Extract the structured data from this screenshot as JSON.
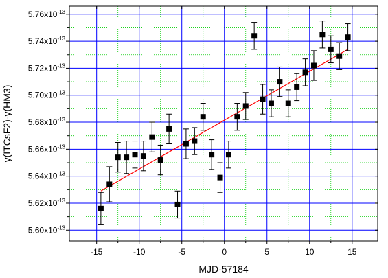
{
  "chart_data": {
    "type": "scatter",
    "title": "",
    "xlabel": "MJD-57184",
    "ylabel": "y(ITCsF2)-y(HM3)",
    "xlim": [
      -18.2,
      18.0
    ],
    "ylim": [
      5.592,
      5.766
    ],
    "x_ticks": [
      -15,
      -10,
      -5,
      0,
      5,
      10,
      15
    ],
    "x_tick_labels": [
      "-15",
      "-10",
      "-5",
      "0",
      "5",
      "10",
      "15"
    ],
    "y_ticks": [
      5.6,
      5.62,
      5.64,
      5.66,
      5.68,
      5.7,
      5.72,
      5.74,
      5.76
    ],
    "y_tick_labels": [
      {
        "mantissa": "5.60x10",
        "exponent": "-13"
      },
      {
        "mantissa": "5.62x10",
        "exponent": "-13"
      },
      {
        "mantissa": "5.64x10",
        "exponent": "-13"
      },
      {
        "mantissa": "5.66x10",
        "exponent": "-13"
      },
      {
        "mantissa": "5.68x10",
        "exponent": "-13"
      },
      {
        "mantissa": "5.70x10",
        "exponent": "-13"
      },
      {
        "mantissa": "5.72x10",
        "exponent": "-13"
      },
      {
        "mantissa": "5.74x10",
        "exponent": "-13"
      },
      {
        "mantissa": "5.76x10",
        "exponent": "-13"
      }
    ],
    "y_scale_factor": "1e-13",
    "grid": {
      "major": true,
      "minor": true
    },
    "colors": {
      "points": "#000000",
      "fit_line": "#ff0000",
      "major_grid": "#0000ff",
      "minor_grid": "#00cc00"
    },
    "series": [
      {
        "x": [
          -14.5,
          -13.5,
          -12.5,
          -11.5,
          -10.5,
          -9.5,
          -8.5,
          -7.5,
          -6.5,
          -5.5,
          -4.5,
          -3.5,
          -2.5,
          -1.5,
          -0.5,
          0.5,
          1.5,
          2.5,
          3.5,
          4.5,
          5.5,
          6.5,
          7.5,
          8.5,
          9.5,
          10.5,
          11.5,
          12.5,
          13.5,
          14.5
        ],
        "y": [
          5.616,
          5.634,
          5.654,
          5.654,
          5.656,
          5.655,
          5.669,
          5.652,
          5.675,
          5.619,
          5.664,
          5.666,
          5.684,
          5.656,
          5.639,
          5.656,
          5.684,
          5.692,
          5.744,
          5.697,
          5.694,
          5.71,
          5.694,
          5.706,
          5.717,
          5.722,
          5.745,
          5.734,
          5.729,
          5.743
        ],
        "yerr": [
          0.012,
          0.013,
          0.011,
          0.012,
          0.01,
          0.011,
          0.011,
          0.011,
          0.011,
          0.01,
          0.011,
          0.01,
          0.01,
          0.011,
          0.011,
          0.01,
          0.01,
          0.01,
          0.01,
          0.011,
          0.01,
          0.011,
          0.01,
          0.01,
          0.01,
          0.011,
          0.01,
          0.01,
          0.01,
          0.01
        ]
      }
    ],
    "fit_line": {
      "x": [
        -14.5,
        14.5
      ],
      "y": [
        5.629,
        5.734
      ]
    }
  }
}
